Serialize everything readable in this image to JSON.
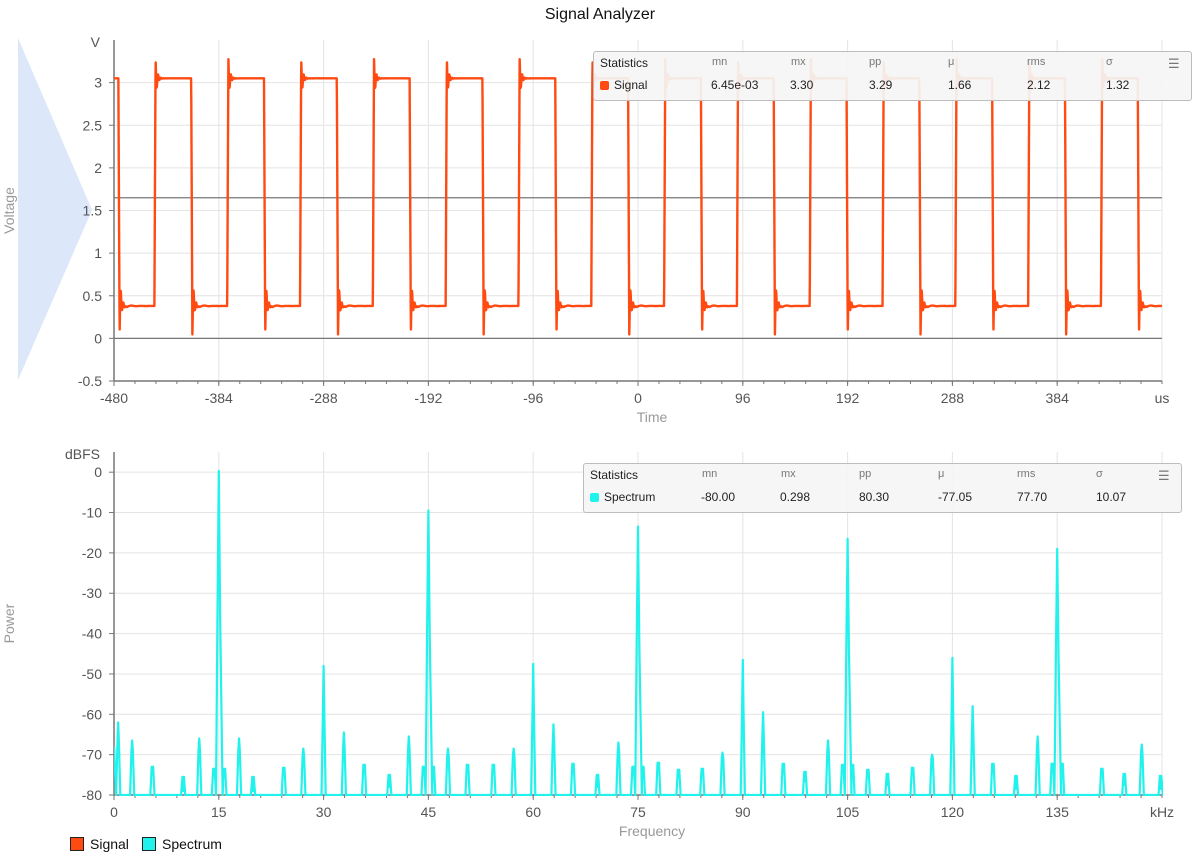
{
  "title": "Signal Analyzer",
  "colors": {
    "signal": "#ff4a12",
    "spectrum": "#22f2ec",
    "grid": "#e4e4e4",
    "axis": "#777777"
  },
  "chart_data": [
    {
      "type": "line",
      "series": [
        {
          "name": "Signal",
          "color": "#ff4a12"
        }
      ],
      "xlabel": "Time",
      "ylabel": "Voltage",
      "x_unit": "us",
      "y_unit": "V",
      "xlim": [
        -480,
        480
      ],
      "ylim": [
        -0.5,
        3.5
      ],
      "x_ticks": [
        -480,
        -384,
        -288,
        -192,
        -96,
        0,
        96,
        192,
        288,
        384
      ],
      "y_ticks": [
        -0.5,
        0,
        0.5,
        1,
        1.5,
        2,
        2.5,
        3
      ],
      "x_tick_labels": [
        "-480",
        "-384",
        "-288",
        "-192",
        "-96",
        "0",
        "96",
        "192",
        "288",
        "384"
      ],
      "y_tick_labels": [
        "-0.5",
        "0",
        "0.5",
        "1",
        "1.5",
        "2",
        "2.5",
        "3"
      ],
      "reference_lines": [
        0,
        1.65
      ],
      "waveform": {
        "period_us": 66.7,
        "low_v": 0.38,
        "high_v": 3.05,
        "first_rise_us": -443,
        "first_fall_us": -476,
        "overshoot_v": 3.3,
        "undershoot_v": 0.0065
      },
      "grid": true,
      "legend": "bottom-left"
    },
    {
      "type": "line",
      "series": [
        {
          "name": "Spectrum",
          "color": "#22f2ec"
        }
      ],
      "xlabel": "Frequency",
      "ylabel": "Power",
      "x_unit": "kHz",
      "y_unit": "dBFS",
      "xlim": [
        0,
        150
      ],
      "ylim": [
        -80,
        5
      ],
      "x_ticks": [
        0,
        15,
        30,
        45,
        60,
        75,
        90,
        105,
        120,
        135
      ],
      "y_ticks": [
        -80,
        -70,
        -60,
        -50,
        -40,
        -30,
        -20,
        -10,
        0
      ],
      "x_tick_labels": [
        "0",
        "15",
        "30",
        "45",
        "60",
        "75",
        "90",
        "105",
        "120",
        "135"
      ],
      "y_tick_labels": [
        "-80",
        "-70",
        "-60",
        "-50",
        "-40",
        "-30",
        "-20",
        "-10",
        "0"
      ],
      "peaks": [
        {
          "x": 0.6,
          "y": -62
        },
        {
          "x": 2.6,
          "y": -66.5
        },
        {
          "x": 5.5,
          "y": -74
        },
        {
          "x": 9.9,
          "y": -79
        },
        {
          "x": 12.2,
          "y": -66
        },
        {
          "x": 14.3,
          "y": -75
        },
        {
          "x": 15,
          "y": 0.3
        },
        {
          "x": 15.8,
          "y": -75
        },
        {
          "x": 17.9,
          "y": -66
        },
        {
          "x": 19.9,
          "y": -79
        },
        {
          "x": 24.3,
          "y": -74.5
        },
        {
          "x": 27.1,
          "y": -68.5
        },
        {
          "x": 30,
          "y": -48
        },
        {
          "x": 32.9,
          "y": -64.5
        },
        {
          "x": 35.8,
          "y": -73
        },
        {
          "x": 39.4,
          "y": -78
        },
        {
          "x": 42.2,
          "y": -65.5
        },
        {
          "x": 44.3,
          "y": -74
        },
        {
          "x": 45,
          "y": -9.5
        },
        {
          "x": 45.7,
          "y": -74
        },
        {
          "x": 47.8,
          "y": -68.5
        },
        {
          "x": 50.6,
          "y": -73
        },
        {
          "x": 54.3,
          "y": -73
        },
        {
          "x": 57.2,
          "y": -68.5
        },
        {
          "x": 60,
          "y": -47.5
        },
        {
          "x": 62.9,
          "y": -62.5
        },
        {
          "x": 65.7,
          "y": -72.5
        },
        {
          "x": 69.2,
          "y": -78
        },
        {
          "x": 72.2,
          "y": -67
        },
        {
          "x": 74.3,
          "y": -74
        },
        {
          "x": 75,
          "y": -13.5
        },
        {
          "x": 75.7,
          "y": -74
        },
        {
          "x": 77.9,
          "y": -72
        },
        {
          "x": 80.8,
          "y": -75.5
        },
        {
          "x": 84.2,
          "y": -75
        },
        {
          "x": 87.1,
          "y": -69.5
        },
        {
          "x": 90,
          "y": -46.5
        },
        {
          "x": 92.9,
          "y": -59.5
        },
        {
          "x": 95.8,
          "y": -72.5
        },
        {
          "x": 98.9,
          "y": -76.5
        },
        {
          "x": 102.2,
          "y": -66.5
        },
        {
          "x": 104.3,
          "y": -73
        },
        {
          "x": 105,
          "y": -16.5
        },
        {
          "x": 105.7,
          "y": -73
        },
        {
          "x": 107.9,
          "y": -75.5
        },
        {
          "x": 110.7,
          "y": -77.5
        },
        {
          "x": 114.3,
          "y": -74.5
        },
        {
          "x": 117.1,
          "y": -70
        },
        {
          "x": 120,
          "y": -46
        },
        {
          "x": 122.9,
          "y": -58
        },
        {
          "x": 125.8,
          "y": -72.5
        },
        {
          "x": 129.1,
          "y": -78.5
        },
        {
          "x": 132.2,
          "y": -65.5
        },
        {
          "x": 134.3,
          "y": -72.5
        },
        {
          "x": 135,
          "y": -19
        },
        {
          "x": 135.7,
          "y": -72.5
        },
        {
          "x": 141.4,
          "y": -75
        },
        {
          "x": 144.6,
          "y": -77.5
        },
        {
          "x": 147.1,
          "y": -67.5
        },
        {
          "x": 149.8,
          "y": -78.5
        }
      ],
      "noise_floor_db": -80,
      "grid": true,
      "legend": "bottom-left"
    }
  ],
  "stats_signal": {
    "title": "Statistics",
    "headers": [
      "mn",
      "mx",
      "pp",
      "μ",
      "rms",
      "σ"
    ],
    "name": "Signal",
    "color": "#ff4a12",
    "values": [
      "6.45e-03",
      "3.30",
      "3.29",
      "1.66",
      "2.12",
      "1.32"
    ]
  },
  "stats_spectrum": {
    "title": "Statistics",
    "headers": [
      "mn",
      "mx",
      "pp",
      "μ",
      "rms",
      "σ"
    ],
    "name": "Spectrum",
    "color": "#22f2ec",
    "values": [
      "-80.00",
      "0.298",
      "80.30",
      "-77.05",
      "77.70",
      "10.07"
    ]
  },
  "legend": [
    {
      "name": "Signal",
      "color": "#ff4a12"
    },
    {
      "name": "Spectrum",
      "color": "#22f2ec"
    }
  ],
  "icons": {
    "stats_menu": "hamburger-menu-icon"
  }
}
